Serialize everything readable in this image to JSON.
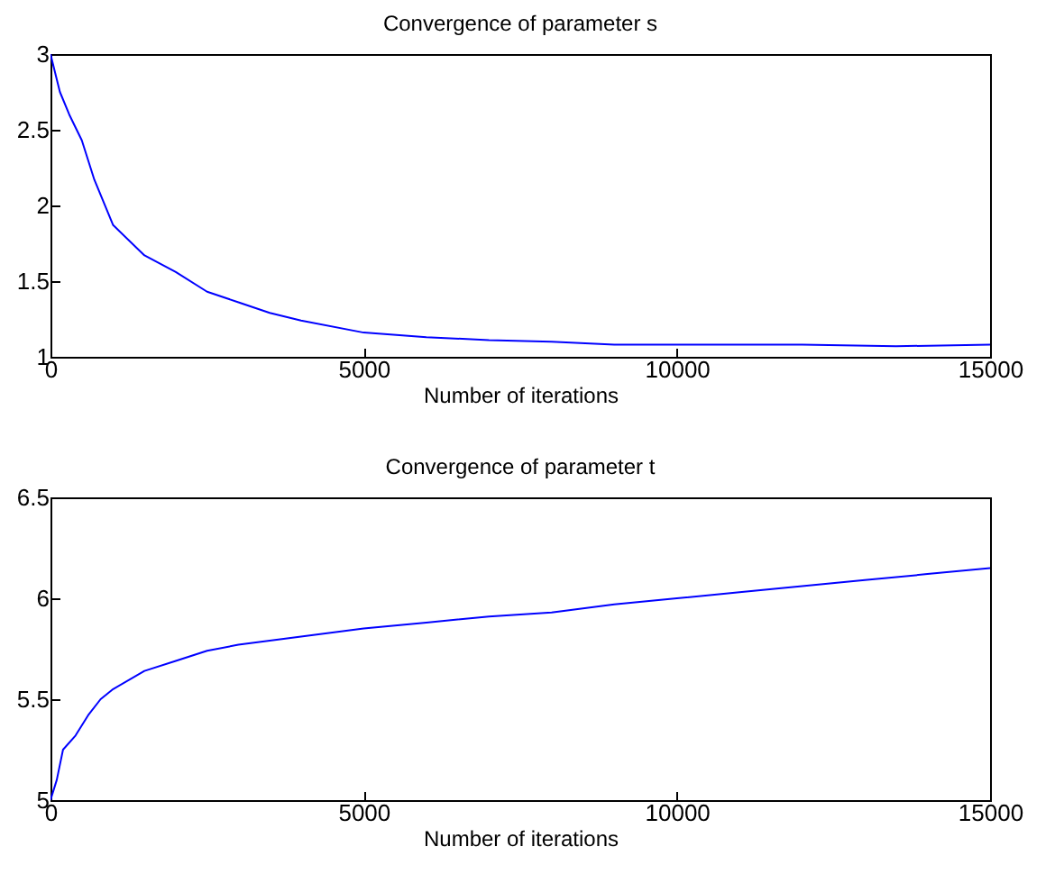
{
  "chart_data": [
    {
      "type": "line",
      "title": "Convergence of parameter s",
      "xlabel": "Number of iterations",
      "x": [
        0,
        150,
        300,
        500,
        700,
        1000,
        1500,
        2000,
        2500,
        3000,
        3500,
        4000,
        5000,
        6000,
        7000,
        8000,
        9000,
        10000,
        12000,
        13500,
        15000
      ],
      "series": [
        {
          "color": "#0000ff",
          "values": [
            3,
            2.75,
            2.6,
            2.43,
            2.17,
            1.87,
            1.67,
            1.56,
            1.43,
            1.36,
            1.29,
            1.24,
            1.16,
            1.13,
            1.11,
            1.1,
            1.08,
            1.08,
            1.08,
            1.07,
            1.08
          ]
        }
      ],
      "xlim": [
        0,
        15000
      ],
      "xticks": [
        0,
        5000,
        10000,
        15000
      ],
      "ylim": [
        1,
        3
      ],
      "yticks": [
        1,
        1.5,
        2,
        2.5,
        3
      ],
      "grid": false
    },
    {
      "type": "line",
      "title": "Convergence of parameter t",
      "xlabel": "Number of iterations",
      "x": [
        0,
        100,
        200,
        400,
        600,
        800,
        1000,
        1500,
        2000,
        2500,
        3000,
        4000,
        5000,
        6000,
        7000,
        8000,
        9000,
        10000,
        11000,
        12000,
        13000,
        14000,
        15000
      ],
      "series": [
        {
          "color": "#0000ff",
          "values": [
            5,
            5.1,
            5.25,
            5.32,
            5.42,
            5.5,
            5.55,
            5.64,
            5.69,
            5.74,
            5.77,
            5.81,
            5.85,
            5.88,
            5.91,
            5.93,
            5.97,
            6.0,
            6.03,
            6.06,
            6.09,
            6.12,
            6.15
          ]
        }
      ],
      "xlim": [
        0,
        15000
      ],
      "xticks": [
        0,
        5000,
        10000,
        15000
      ],
      "ylim": [
        5,
        6.5
      ],
      "yticks": [
        5,
        5.5,
        6,
        6.5
      ],
      "grid": false
    }
  ]
}
